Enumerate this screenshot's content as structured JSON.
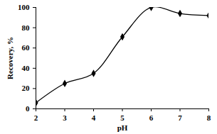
{
  "chart_data": {
    "type": "line",
    "x_label": "pH",
    "y_label": "Recovery, %",
    "x": [
      2,
      3,
      4,
      5,
      6,
      7,
      8
    ],
    "values": [
      6,
      25,
      35,
      71,
      100,
      94,
      92
    ],
    "color": "#000000",
    "marker": "diamond",
    "line_style": "smooth",
    "xlim": [
      2,
      8
    ],
    "xticks": [
      2,
      3,
      4,
      5,
      6,
      7,
      8
    ],
    "ylim": [
      0,
      100
    ],
    "yticks": [
      0,
      20,
      40,
      60,
      80,
      100
    ],
    "grid": false
  }
}
